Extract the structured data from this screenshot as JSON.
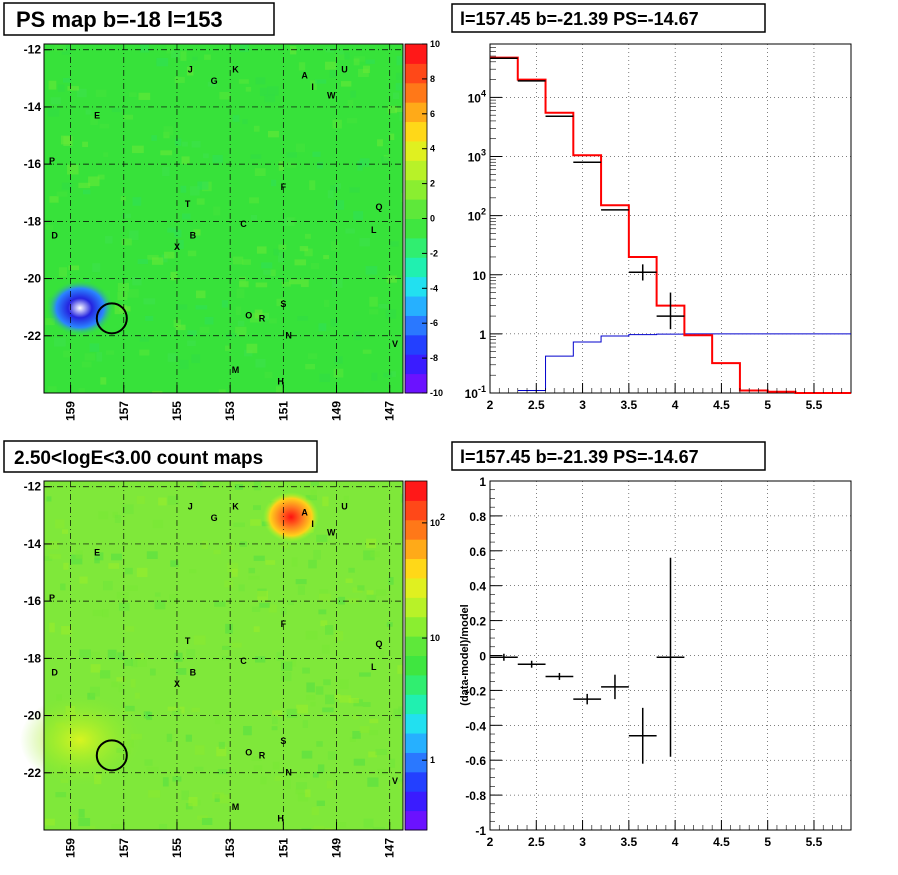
{
  "panels": {
    "tl": {
      "title": "PS map b=-18 l=153"
    },
    "tr": {
      "title": "l=157.45 b=-21.39 PS=-14.67"
    },
    "bl": {
      "title": "2.50<logE<3.00 count maps"
    },
    "br": {
      "title": "l=157.45 b=-21.39 PS=-14.67"
    }
  },
  "colors": {
    "data": "#000000",
    "model": "#ff0000",
    "background_model": "#0000cc",
    "map_base": "#37e23a"
  },
  "chart_data": [
    {
      "type": "heatmap",
      "title": "PS map b=-18 l=153",
      "x_ticks": [
        "159",
        "157",
        "155",
        "153",
        "151",
        "149",
        "147"
      ],
      "y_ticks": [
        "-12",
        "-14",
        "-16",
        "-18",
        "-20",
        "-22"
      ],
      "xlim": [
        160,
        146.5
      ],
      "ylim": [
        -24,
        -11.8
      ],
      "colorbar": {
        "min": -10,
        "max": 10,
        "ticks": [
          "10",
          "8",
          "6",
          "4",
          "2",
          "0",
          "-2",
          "-4",
          "-6",
          "-8",
          "-10"
        ]
      },
      "sources": [
        {
          "label": "J",
          "l": 154.5,
          "b": -12.8
        },
        {
          "label": "K",
          "l": 152.8,
          "b": -12.8
        },
        {
          "label": "G",
          "l": 153.6,
          "b": -13.2
        },
        {
          "label": "A",
          "l": 150.2,
          "b": -13.0
        },
        {
          "label": "U",
          "l": 148.7,
          "b": -12.8
        },
        {
          "label": "I",
          "l": 149.9,
          "b": -13.4
        },
        {
          "label": "W",
          "l": 149.2,
          "b": -13.7
        },
        {
          "label": "E",
          "l": 158.0,
          "b": -14.4
        },
        {
          "label": "P",
          "l": 159.7,
          "b": -16.0
        },
        {
          "label": "F",
          "l": 151.0,
          "b": -16.9
        },
        {
          "label": "T",
          "l": 154.6,
          "b": -17.5
        },
        {
          "label": "Q",
          "l": 147.4,
          "b": -17.6
        },
        {
          "label": "D",
          "l": 159.6,
          "b": -18.6
        },
        {
          "label": "C",
          "l": 152.5,
          "b": -18.2
        },
        {
          "label": "L",
          "l": 147.6,
          "b": -18.4
        },
        {
          "label": "B",
          "l": 154.4,
          "b": -18.6
        },
        {
          "label": "X",
          "l": 155.0,
          "b": -19.0
        },
        {
          "label": "S",
          "l": 151.0,
          "b": -21.0
        },
        {
          "label": "O",
          "l": 152.3,
          "b": -21.4
        },
        {
          "label": "R",
          "l": 151.8,
          "b": -21.5
        },
        {
          "label": "N",
          "l": 150.8,
          "b": -22.1
        },
        {
          "label": "V",
          "l": 146.8,
          "b": -22.4
        },
        {
          "label": "M",
          "l": 152.8,
          "b": -23.3
        },
        {
          "label": "H",
          "l": 151.1,
          "b": -23.7
        }
      ],
      "circle": {
        "l": 157.45,
        "b": -21.39
      }
    },
    {
      "type": "line",
      "title": "l=157.45 b=-21.39 PS=-14.67",
      "scale": "log-y",
      "x_ticks": [
        "2",
        "2.5",
        "3",
        "3.5",
        "4",
        "4.5",
        "5",
        "5.5"
      ],
      "y_ticks": [
        "10^-1",
        "1",
        "10",
        "10^2",
        "10^3",
        "10^4"
      ],
      "xlim": [
        2.0,
        5.9
      ],
      "ylim": [
        0.1,
        80000
      ],
      "bin_edges": [
        2.0,
        2.3,
        2.6,
        2.9,
        3.2,
        3.5,
        3.8,
        4.1,
        4.4,
        4.7,
        5.0,
        5.3,
        5.6,
        5.9
      ],
      "series": [
        {
          "values": [
            47000,
            20000,
            5500,
            1050,
            150,
            20,
            3.0,
            0.95,
            0.32,
            0.11,
            0.105,
            0.1,
            0.1
          ]
        },
        {
          "values": [
            null,
            0.11,
            0.42,
            0.73,
            0.92,
            0.97,
            0.99,
            1.0,
            1.0,
            1.0,
            1.0,
            1.0,
            1.0
          ]
        }
      ],
      "data_points": [
        {
          "x": 2.15,
          "y": 46000
        },
        {
          "x": 2.45,
          "y": 19000
        },
        {
          "x": 2.75,
          "y": 4800
        },
        {
          "x": 3.05,
          "y": 800
        },
        {
          "x": 3.35,
          "y": 125
        },
        {
          "x": 3.65,
          "y": 11,
          "ylo": 8,
          "yhi": 15
        },
        {
          "x": 3.95,
          "y": 2.0,
          "ylo": 1.2,
          "yhi": 5.0
        }
      ]
    },
    {
      "type": "heatmap",
      "title": "2.50<logE<3.00 count maps",
      "x_ticks": [
        "159",
        "157",
        "155",
        "153",
        "151",
        "149",
        "147"
      ],
      "y_ticks": [
        "-12",
        "-14",
        "-16",
        "-18",
        "-20",
        "-22"
      ],
      "xlim": [
        160,
        146.5
      ],
      "ylim": [
        -24,
        -11.8
      ],
      "colorbar": {
        "scale": "log",
        "ticks": [
          "10^2",
          "10",
          "1"
        ]
      },
      "circle": {
        "l": 157.45,
        "b": -21.39
      }
    },
    {
      "type": "scatter",
      "title": "l=157.45 b=-21.39 PS=-14.67",
      "ylabel": "(data-model)/model",
      "x_ticks": [
        "2",
        "2.5",
        "3",
        "3.5",
        "4",
        "4.5",
        "5",
        "5.5"
      ],
      "y_ticks": [
        "1",
        "0.8",
        "0.6",
        "0.4",
        "0.2",
        "0",
        "-0.2",
        "-0.4",
        "-0.6",
        "-0.8",
        "-1"
      ],
      "xlim": [
        2.0,
        5.9
      ],
      "ylim": [
        -1,
        1
      ],
      "points": [
        {
          "x": 2.15,
          "y": -0.01,
          "xerr": 0.15,
          "yerr": 0.02
        },
        {
          "x": 2.45,
          "y": -0.05,
          "xerr": 0.15,
          "yerr": 0.02
        },
        {
          "x": 2.75,
          "y": -0.12,
          "xerr": 0.15,
          "yerr": 0.02
        },
        {
          "x": 3.05,
          "y": -0.25,
          "xerr": 0.15,
          "yerr": 0.03
        },
        {
          "x": 3.35,
          "y": -0.18,
          "xerr": 0.15,
          "yerr": 0.07
        },
        {
          "x": 3.65,
          "y": -0.46,
          "xerr": 0.15,
          "yerr": 0.16
        },
        {
          "x": 3.95,
          "y": -0.01,
          "xerr": 0.15,
          "yerr": 0.57
        }
      ]
    }
  ]
}
